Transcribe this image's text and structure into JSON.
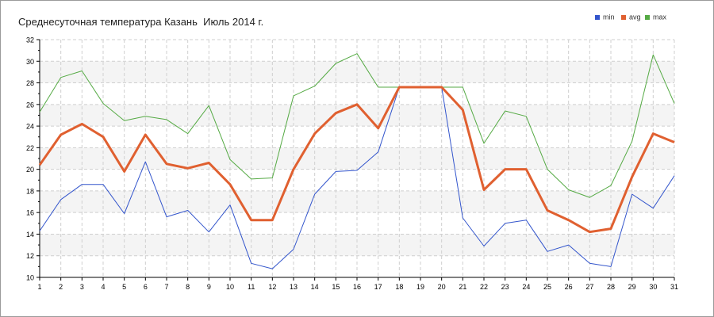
{
  "chart_data": {
    "type": "line",
    "title": "Среднесуточная температура Казань  Июль 2014 г.",
    "xlabel": "",
    "ylabel": "",
    "x": [
      1,
      2,
      3,
      4,
      5,
      6,
      7,
      8,
      9,
      10,
      11,
      12,
      13,
      14,
      15,
      16,
      17,
      18,
      19,
      20,
      21,
      22,
      23,
      24,
      25,
      26,
      27,
      28,
      29,
      30,
      31
    ],
    "ylim": [
      10,
      32
    ],
    "yticks": [
      10,
      12,
      14,
      16,
      18,
      20,
      22,
      24,
      26,
      28,
      30,
      32
    ],
    "grid": true,
    "legend_position": "top-right",
    "series": [
      {
        "name": "min",
        "color": "#3355cc",
        "values": [
          14.3,
          17.2,
          18.6,
          18.6,
          15.9,
          20.7,
          15.6,
          16.2,
          14.2,
          16.7,
          11.3,
          10.8,
          12.6,
          17.7,
          19.8,
          19.9,
          21.6,
          27.6,
          27.6,
          27.6,
          15.5,
          12.9,
          15.0,
          15.3,
          12.4,
          13.0,
          11.3,
          11.0,
          17.7,
          16.4,
          19.4
        ]
      },
      {
        "name": "avg",
        "color": "#e06030",
        "values": [
          20.4,
          23.2,
          24.2,
          23.0,
          19.8,
          23.2,
          20.5,
          20.1,
          20.6,
          18.6,
          15.3,
          15.3,
          20.0,
          23.3,
          25.2,
          26.0,
          23.8,
          27.6,
          27.6,
          27.6,
          25.5,
          18.1,
          20.0,
          20.0,
          16.2,
          15.3,
          14.2,
          14.5,
          19.3,
          23.3,
          22.5
        ]
      },
      {
        "name": "max",
        "color": "#55aa44",
        "values": [
          25.3,
          28.5,
          29.1,
          26.1,
          24.5,
          24.9,
          24.6,
          23.3,
          25.9,
          20.9,
          19.1,
          19.2,
          26.8,
          27.7,
          29.8,
          30.7,
          27.6,
          27.6,
          27.6,
          27.6,
          27.6,
          22.4,
          25.4,
          24.9,
          20.0,
          18.1,
          17.4,
          18.5,
          22.6,
          30.6,
          26.1
        ]
      }
    ]
  }
}
